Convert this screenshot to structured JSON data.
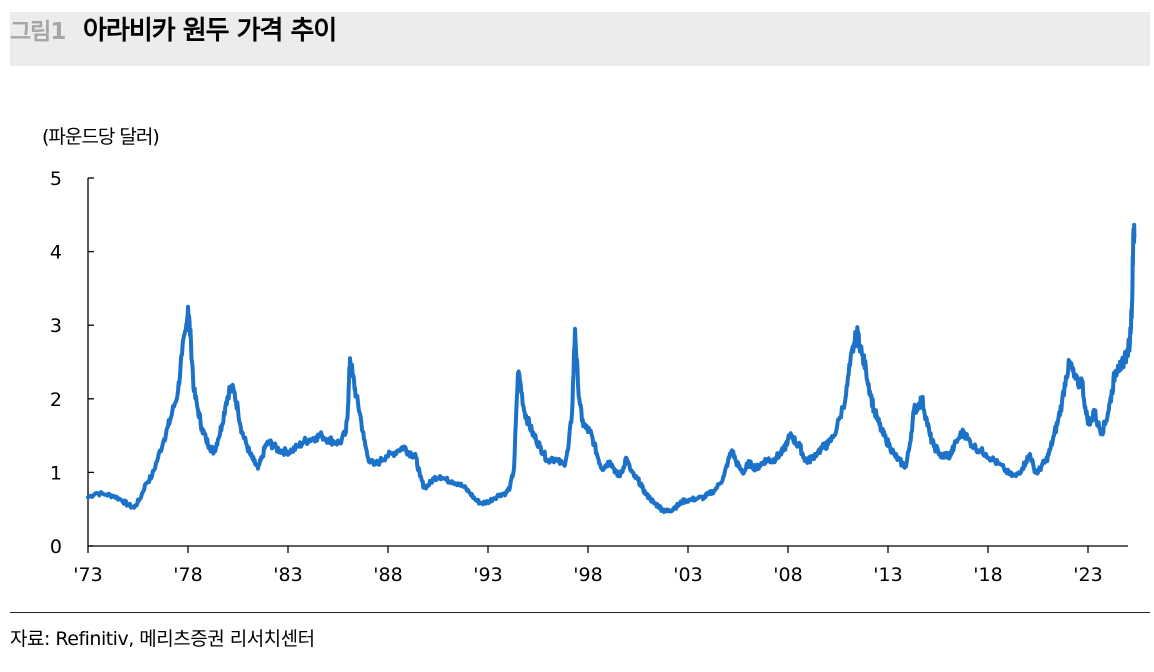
{
  "header": {
    "figure_label": "그림1",
    "title": "아라비카 원두 가격 추이"
  },
  "footer": {
    "source": "자료: Refinitiv, 메리츠증권 리서치센터"
  },
  "colors": {
    "line": "#1b72c8",
    "title_bar": "#ececec",
    "figure_label": "#a6a6a6"
  },
  "chart_data": {
    "type": "line",
    "ylabel": "(파운드당 달러)",
    "ylim": [
      0,
      5
    ],
    "xlim": [
      1973,
      2024.6
    ],
    "grid": false,
    "legend": "none",
    "yticks": [
      0,
      1,
      2,
      3,
      4,
      5
    ],
    "xticks": [
      {
        "x": 1973,
        "label": "'73"
      },
      {
        "x": 1978,
        "label": "'78"
      },
      {
        "x": 1983,
        "label": "'83"
      },
      {
        "x": 1988,
        "label": "'88"
      },
      {
        "x": 1993,
        "label": "'93"
      },
      {
        "x": 1998,
        "label": "'98"
      },
      {
        "x": 2003,
        "label": "'03"
      },
      {
        "x": 2008,
        "label": "'08"
      },
      {
        "x": 2013,
        "label": "'13"
      },
      {
        "x": 2018,
        "label": "'18"
      },
      {
        "x": 2023,
        "label": "'23"
      }
    ],
    "series": [
      {
        "points": [
          [
            1973.0,
            0.66
          ],
          [
            1973.4,
            0.72
          ],
          [
            1973.9,
            0.7
          ],
          [
            1974.3,
            0.68
          ],
          [
            1974.7,
            0.62
          ],
          [
            1975.0,
            0.56
          ],
          [
            1975.3,
            0.52
          ],
          [
            1975.6,
            0.64
          ],
          [
            1975.9,
            0.85
          ],
          [
            1976.2,
            0.95
          ],
          [
            1976.5,
            1.2
          ],
          [
            1976.8,
            1.45
          ],
          [
            1977.0,
            1.62
          ],
          [
            1977.2,
            1.8
          ],
          [
            1977.5,
            2.1
          ],
          [
            1977.7,
            2.6
          ],
          [
            1977.9,
            2.95
          ],
          [
            1978.0,
            3.25
          ],
          [
            1978.15,
            2.75
          ],
          [
            1978.3,
            2.1
          ],
          [
            1978.5,
            1.85
          ],
          [
            1978.7,
            1.6
          ],
          [
            1978.9,
            1.45
          ],
          [
            1979.1,
            1.35
          ],
          [
            1979.3,
            1.28
          ],
          [
            1979.5,
            1.45
          ],
          [
            1979.7,
            1.65
          ],
          [
            1979.9,
            1.95
          ],
          [
            1980.1,
            2.15
          ],
          [
            1980.3,
            2.1
          ],
          [
            1980.5,
            1.85
          ],
          [
            1980.7,
            1.55
          ],
          [
            1980.9,
            1.4
          ],
          [
            1981.1,
            1.25
          ],
          [
            1981.3,
            1.15
          ],
          [
            1981.5,
            1.05
          ],
          [
            1981.7,
            1.2
          ],
          [
            1981.9,
            1.38
          ],
          [
            1982.1,
            1.4
          ],
          [
            1982.3,
            1.35
          ],
          [
            1982.6,
            1.3
          ],
          [
            1982.9,
            1.28
          ],
          [
            1983.2,
            1.3
          ],
          [
            1983.5,
            1.35
          ],
          [
            1983.8,
            1.42
          ],
          [
            1984.1,
            1.45
          ],
          [
            1984.4,
            1.48
          ],
          [
            1984.7,
            1.5
          ],
          [
            1985.0,
            1.45
          ],
          [
            1985.3,
            1.42
          ],
          [
            1985.6,
            1.4
          ],
          [
            1985.9,
            1.55
          ],
          [
            1986.0,
            1.9
          ],
          [
            1986.1,
            2.55
          ],
          [
            1986.25,
            2.3
          ],
          [
            1986.4,
            2.05
          ],
          [
            1986.6,
            1.8
          ],
          [
            1986.8,
            1.45
          ],
          [
            1987.0,
            1.2
          ],
          [
            1987.3,
            1.1
          ],
          [
            1987.6,
            1.15
          ],
          [
            1987.9,
            1.22
          ],
          [
            1988.2,
            1.25
          ],
          [
            1988.5,
            1.3
          ],
          [
            1988.8,
            1.35
          ],
          [
            1989.0,
            1.28
          ],
          [
            1989.2,
            1.25
          ],
          [
            1989.4,
            1.2
          ],
          [
            1989.6,
            0.95
          ],
          [
            1989.8,
            0.8
          ],
          [
            1990.0,
            0.82
          ],
          [
            1990.3,
            0.92
          ],
          [
            1990.6,
            0.95
          ],
          [
            1990.9,
            0.9
          ],
          [
            1991.2,
            0.88
          ],
          [
            1991.5,
            0.85
          ],
          [
            1991.8,
            0.8
          ],
          [
            1992.1,
            0.72
          ],
          [
            1992.4,
            0.62
          ],
          [
            1992.7,
            0.58
          ],
          [
            1993.0,
            0.6
          ],
          [
            1993.3,
            0.65
          ],
          [
            1993.6,
            0.7
          ],
          [
            1993.9,
            0.72
          ],
          [
            1994.1,
            0.8
          ],
          [
            1994.3,
            1.05
          ],
          [
            1994.5,
            2.35
          ],
          [
            1994.6,
            2.25
          ],
          [
            1994.8,
            1.85
          ],
          [
            1995.0,
            1.7
          ],
          [
            1995.2,
            1.55
          ],
          [
            1995.4,
            1.45
          ],
          [
            1995.6,
            1.35
          ],
          [
            1995.8,
            1.25
          ],
          [
            1996.0,
            1.15
          ],
          [
            1996.2,
            1.2
          ],
          [
            1996.5,
            1.15
          ],
          [
            1996.8,
            1.1
          ],
          [
            1997.0,
            1.3
          ],
          [
            1997.2,
            1.8
          ],
          [
            1997.35,
            2.95
          ],
          [
            1997.5,
            2.2
          ],
          [
            1997.7,
            1.7
          ],
          [
            1997.9,
            1.6
          ],
          [
            1998.1,
            1.55
          ],
          [
            1998.3,
            1.4
          ],
          [
            1998.5,
            1.2
          ],
          [
            1998.7,
            1.05
          ],
          [
            1998.9,
            1.1
          ],
          [
            1999.1,
            1.15
          ],
          [
            1999.3,
            1.05
          ],
          [
            1999.5,
            0.95
          ],
          [
            1999.7,
            1.0
          ],
          [
            1999.9,
            1.2
          ],
          [
            2000.1,
            1.05
          ],
          [
            2000.3,
            0.95
          ],
          [
            2000.5,
            0.9
          ],
          [
            2000.7,
            0.8
          ],
          [
            2000.9,
            0.7
          ],
          [
            2001.1,
            0.65
          ],
          [
            2001.3,
            0.58
          ],
          [
            2001.5,
            0.55
          ],
          [
            2001.7,
            0.5
          ],
          [
            2001.9,
            0.47
          ],
          [
            2002.1,
            0.48
          ],
          [
            2002.3,
            0.52
          ],
          [
            2002.5,
            0.55
          ],
          [
            2002.7,
            0.6
          ],
          [
            2002.9,
            0.62
          ],
          [
            2003.2,
            0.63
          ],
          [
            2003.5,
            0.65
          ],
          [
            2003.8,
            0.66
          ],
          [
            2004.0,
            0.7
          ],
          [
            2004.3,
            0.75
          ],
          [
            2004.6,
            0.85
          ],
          [
            2004.8,
            0.95
          ],
          [
            2005.0,
            1.15
          ],
          [
            2005.2,
            1.3
          ],
          [
            2005.4,
            1.15
          ],
          [
            2005.6,
            1.05
          ],
          [
            2005.8,
            1.0
          ],
          [
            2006.0,
            1.12
          ],
          [
            2006.2,
            1.1
          ],
          [
            2006.4,
            1.05
          ],
          [
            2006.6,
            1.1
          ],
          [
            2006.8,
            1.15
          ],
          [
            2007.0,
            1.18
          ],
          [
            2007.2,
            1.15
          ],
          [
            2007.4,
            1.2
          ],
          [
            2007.6,
            1.25
          ],
          [
            2007.8,
            1.3
          ],
          [
            2008.0,
            1.45
          ],
          [
            2008.2,
            1.5
          ],
          [
            2008.4,
            1.4
          ],
          [
            2008.6,
            1.35
          ],
          [
            2008.8,
            1.2
          ],
          [
            2009.0,
            1.15
          ],
          [
            2009.2,
            1.2
          ],
          [
            2009.5,
            1.28
          ],
          [
            2009.8,
            1.35
          ],
          [
            2010.0,
            1.38
          ],
          [
            2010.3,
            1.5
          ],
          [
            2010.6,
            1.75
          ],
          [
            2010.9,
            2.05
          ],
          [
            2011.1,
            2.45
          ],
          [
            2011.3,
            2.75
          ],
          [
            2011.5,
            2.9
          ],
          [
            2011.7,
            2.6
          ],
          [
            2011.9,
            2.4
          ],
          [
            2012.1,
            2.1
          ],
          [
            2012.3,
            1.85
          ],
          [
            2012.5,
            1.7
          ],
          [
            2012.7,
            1.55
          ],
          [
            2012.9,
            1.45
          ],
          [
            2013.1,
            1.35
          ],
          [
            2013.3,
            1.25
          ],
          [
            2013.5,
            1.18
          ],
          [
            2013.7,
            1.12
          ],
          [
            2013.9,
            1.08
          ],
          [
            2014.1,
            1.4
          ],
          [
            2014.3,
            1.85
          ],
          [
            2014.5,
            1.9
          ],
          [
            2014.7,
            2.0
          ],
          [
            2014.9,
            1.75
          ],
          [
            2015.1,
            1.5
          ],
          [
            2015.3,
            1.35
          ],
          [
            2015.5,
            1.3
          ],
          [
            2015.7,
            1.2
          ],
          [
            2015.9,
            1.25
          ],
          [
            2016.1,
            1.22
          ],
          [
            2016.3,
            1.35
          ],
          [
            2016.6,
            1.5
          ],
          [
            2016.8,
            1.55
          ],
          [
            2017.0,
            1.45
          ],
          [
            2017.3,
            1.35
          ],
          [
            2017.6,
            1.3
          ],
          [
            2017.9,
            1.25
          ],
          [
            2018.2,
            1.18
          ],
          [
            2018.5,
            1.12
          ],
          [
            2018.8,
            1.05
          ],
          [
            2019.1,
            0.97
          ],
          [
            2019.4,
            0.95
          ],
          [
            2019.7,
            1.05
          ],
          [
            2019.9,
            1.15
          ],
          [
            2020.1,
            1.25
          ],
          [
            2020.3,
            1.05
          ],
          [
            2020.5,
            1.0
          ],
          [
            2020.7,
            1.1
          ],
          [
            2020.9,
            1.15
          ],
          [
            2021.1,
            1.3
          ],
          [
            2021.3,
            1.5
          ],
          [
            2021.5,
            1.7
          ],
          [
            2021.7,
            1.95
          ],
          [
            2021.9,
            2.3
          ],
          [
            2022.1,
            2.5
          ],
          [
            2022.3,
            2.3
          ],
          [
            2022.5,
            2.2
          ],
          [
            2022.7,
            2.25
          ],
          [
            2022.9,
            1.8
          ],
          [
            2023.1,
            1.65
          ],
          [
            2023.3,
            1.85
          ],
          [
            2023.5,
            1.65
          ],
          [
            2023.7,
            1.55
          ],
          [
            2023.9,
            1.7
          ],
          [
            2024.1,
            1.95
          ],
          [
            2024.2,
            2.1
          ],
          [
            2024.35,
            2.35
          ],
          [
            2024.5,
            2.45
          ],
          [
            2024.65,
            2.4
          ],
          [
            2024.8,
            2.55
          ],
          [
            2024.95,
            2.6
          ],
          [
            2025.1,
            2.8
          ],
          [
            2025.2,
            3.3
          ],
          [
            2025.27,
            4.3
          ],
          [
            2025.32,
            4.2
          ]
        ]
      }
    ]
  }
}
